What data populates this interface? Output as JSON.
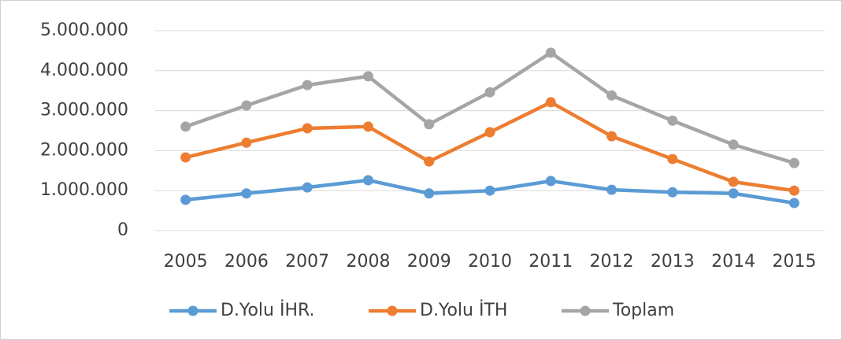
{
  "chart_data": {
    "type": "line",
    "categories": [
      "2005",
      "2006",
      "2007",
      "2008",
      "2009",
      "2010",
      "2011",
      "2012",
      "2013",
      "2014",
      "2015"
    ],
    "series": [
      {
        "name": "D.Yolu İHR.",
        "color": "#5b9bd5",
        "values": [
          770000,
          930000,
          1080000,
          1260000,
          930000,
          1000000,
          1240000,
          1020000,
          960000,
          930000,
          690000
        ]
      },
      {
        "name": "D.Yolu İTH",
        "color": "#ed7d31",
        "values": [
          1830000,
          2200000,
          2560000,
          2600000,
          1730000,
          2460000,
          3210000,
          2360000,
          1790000,
          1220000,
          1000000
        ]
      },
      {
        "name": "Toplam",
        "color": "#a5a5a5",
        "values": [
          2600000,
          3130000,
          3640000,
          3860000,
          2660000,
          3460000,
          4450000,
          3380000,
          2750000,
          2150000,
          1690000
        ]
      }
    ],
    "ylim": [
      0,
      5000000
    ],
    "yticks": [
      0,
      {
        "value": 1000000,
        "label": "1.000.000"
      },
      {
        "value": 2000000,
        "label": "2.000.000"
      },
      {
        "value": 3000000,
        "label": "3.000.000"
      },
      {
        "value": 4000000,
        "label": "4.000.000"
      },
      {
        "value": 5000000,
        "label": "5.000.000"
      }
    ],
    "grid": true,
    "legend": "bottom"
  }
}
